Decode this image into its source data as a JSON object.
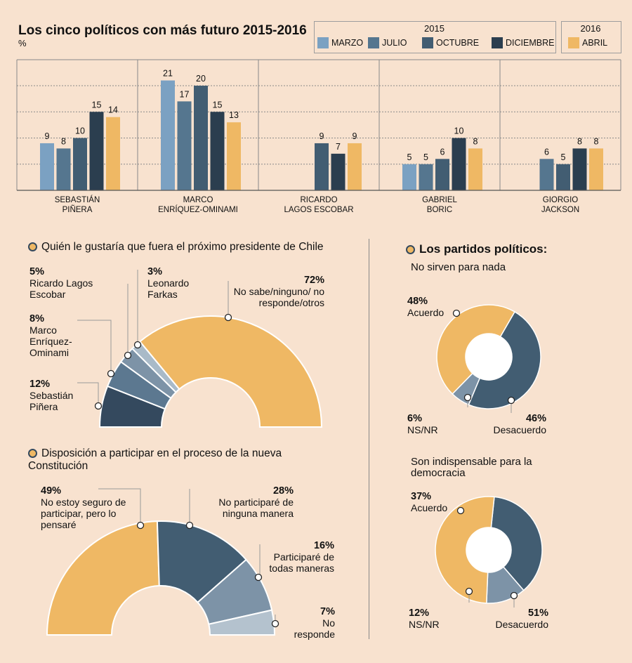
{
  "title": "Los cinco políticos con más futuro 2015-2016",
  "unit": "%",
  "legend": {
    "year2015": "2015",
    "year2016": "2016",
    "items": [
      {
        "label": "MARZO",
        "color": "#7ba1c2"
      },
      {
        "label": "JULIO",
        "color": "#55768f"
      },
      {
        "label": "OCTUBRE",
        "color": "#425d72"
      },
      {
        "label": "DICIEMBRE",
        "color": "#2b3e4f"
      },
      {
        "label": "ABRIL",
        "color": "#efb864"
      }
    ]
  },
  "chart_data": [
    {
      "type": "bar",
      "title": "Los cinco políticos con más futuro 2015-2016",
      "ylabel": "%",
      "ylim": [
        0,
        25
      ],
      "series_names": [
        "MARZO",
        "JULIO",
        "OCTUBRE",
        "DICIEMBRE",
        "ABRIL"
      ],
      "groups": [
        {
          "line1": "SEBASTIÁN",
          "line2": "PIÑERA",
          "values": [
            9,
            8,
            10,
            15,
            14
          ]
        },
        {
          "line1": "MARCO",
          "line2": "ENRÍQUEZ-OMINAMI",
          "values": [
            21,
            17,
            20,
            15,
            13
          ]
        },
        {
          "line1": "RICARDO",
          "line2": "LAGOS ESCOBAR",
          "values": [
            null,
            null,
            9,
            7,
            9
          ]
        },
        {
          "line1": "GABRIEL",
          "line2": "BORIC",
          "values": [
            5,
            5,
            6,
            10,
            8
          ]
        },
        {
          "line1": "GIORGIO",
          "line2": "JACKSON",
          "values": [
            null,
            6,
            5,
            8,
            8
          ]
        }
      ]
    },
    {
      "type": "pie",
      "title": "Quién le gustaría que fuera el próximo presidente de Chile",
      "slices": [
        {
          "label": "Sebastián Piñera",
          "value": 12,
          "pct": "12%",
          "color": "#34495e"
        },
        {
          "label": "Marco Enríquez-Ominami",
          "value": 8,
          "pct": "8%",
          "color": "#5c7890"
        },
        {
          "label": "Ricardo Lagos Escobar",
          "value": 5,
          "pct": "5%",
          "color": "#7d93a7"
        },
        {
          "label": "Leonardo Farkas",
          "value": 3,
          "pct": "3%",
          "color": "#a9bac8"
        },
        {
          "label": "No sabe/ninguno/no responde/otros",
          "value": 72,
          "pct": "72%",
          "color": "#efb864"
        }
      ]
    },
    {
      "type": "pie",
      "title": "Disposición a participar en el proceso de la nueva Constitución",
      "slices": [
        {
          "label": "No estoy seguro de participar, pero lo pensaré",
          "value": 49,
          "pct": "49%",
          "color": "#efb864"
        },
        {
          "label": "No participaré de ninguna manera",
          "value": 28,
          "pct": "28%",
          "color": "#425d72"
        },
        {
          "label": "Participaré de todas maneras",
          "value": 16,
          "pct": "16%",
          "color": "#7d93a7"
        },
        {
          "label": "No responde",
          "value": 7,
          "pct": "7%",
          "color": "#b4c2ce"
        }
      ]
    },
    {
      "type": "pie",
      "title": "No sirven para nada",
      "slices": [
        {
          "label": "Acuerdo",
          "value": 48,
          "pct": "48%",
          "color": "#425d72"
        },
        {
          "label": "NS/NR",
          "value": 6,
          "pct": "6%",
          "color": "#7d93a7"
        },
        {
          "label": "Desacuerdo",
          "value": 46,
          "pct": "46%",
          "color": "#efb864"
        }
      ]
    },
    {
      "type": "pie",
      "title": "Son indispensable para la democracia",
      "slices": [
        {
          "label": "Acuerdo",
          "value": 37,
          "pct": "37%",
          "color": "#425d72"
        },
        {
          "label": "NS/NR",
          "value": 12,
          "pct": "12%",
          "color": "#7d93a7"
        },
        {
          "label": "Desacuerdo",
          "value": 51,
          "pct": "51%",
          "color": "#efb864"
        }
      ]
    }
  ],
  "labels": {
    "pres_title": "Quién le gustaría que fuera el próximo presidente de Chile",
    "pres": {
      "lagos_pct": "5%",
      "lagos_name": "Ricardo Lagos Escobar",
      "farkas_pct": "3%",
      "farkas_name": "Leonardo Farkas",
      "nosabe_pct": "72%",
      "nosabe_name": "No sabe/ninguno/ no responde/otros",
      "meo_pct": "8%",
      "meo_name": "Marco Enríquez-Ominami",
      "pinera_pct": "12%",
      "pinera_name": "Sebastián Piñera"
    },
    "const_title": "Disposición a participar en el proceso de la nueva Constitución",
    "const": {
      "noseguro_pct": "49%",
      "noseguro_name": "No estoy seguro de participar, pero lo pensaré",
      "noparticipare_pct": "28%",
      "noparticipare_name": "No participaré de ninguna manera",
      "participare_pct": "16%",
      "participare_name": "Participaré de todas maneras",
      "noresponde_pct": "7%",
      "noresponde_name": "No responde"
    },
    "partidos_title": "Los partidos políticos:",
    "d1": {
      "title": "No sirven para nada",
      "acuerdo_pct": "48%",
      "acuerdo": "Acuerdo",
      "nsnr_pct": "6%",
      "nsnr": "NS/NR",
      "desacuerdo_pct": "46%",
      "desacuerdo": "Desacuerdo"
    },
    "d2": {
      "title": "Son indispensable para la democracia",
      "acuerdo_pct": "37%",
      "acuerdo": "Acuerdo",
      "nsnr_pct": "12%",
      "nsnr": "NS/NR",
      "desacuerdo_pct": "51%",
      "desacuerdo": "Desacuerdo"
    }
  }
}
